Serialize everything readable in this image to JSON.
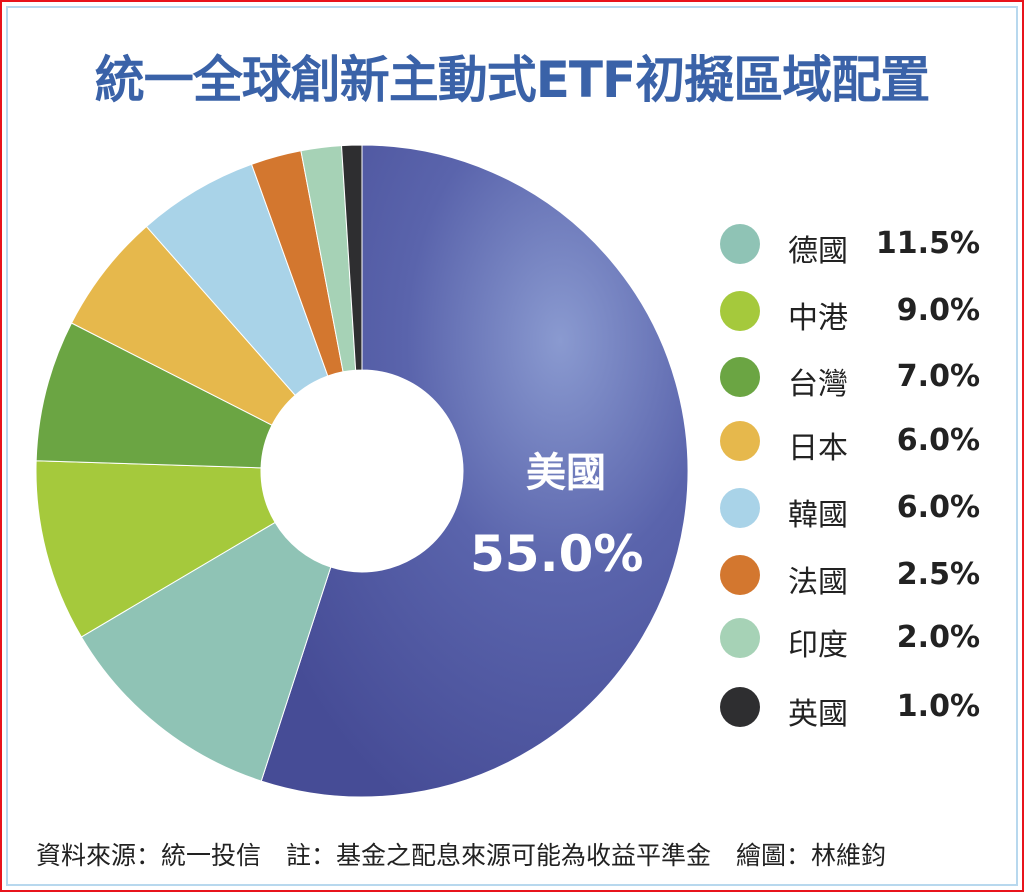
{
  "chart_data": {
    "type": "pie",
    "title": "統一全球創新主動式ETF初擬區域配置",
    "donut": true,
    "start": "top",
    "direction": "clockwise",
    "slices": [
      {
        "label": "美國",
        "value": 55.0,
        "display": "55.0%",
        "color": "#5059a2"
      },
      {
        "label": "德國",
        "value": 11.5,
        "display": "11.5%",
        "color": "#8fc3b5"
      },
      {
        "label": "中港",
        "value": 9.0,
        "display": "9.0%",
        "color": "#a5c93c"
      },
      {
        "label": "台灣",
        "value": 7.0,
        "display": "7.0%",
        "color": "#6ba543"
      },
      {
        "label": "日本",
        "value": 6.0,
        "display": "6.0%",
        "color": "#e6b84c"
      },
      {
        "label": "韓國",
        "value": 6.0,
        "display": "6.0%",
        "color": "#a9d3e8"
      },
      {
        "label": "法國",
        "value": 2.5,
        "display": "2.5%",
        "color": "#d3772f"
      },
      {
        "label": "印度",
        "value": 2.0,
        "display": "2.0%",
        "color": "#a6d2b6"
      },
      {
        "label": "英國",
        "value": 1.0,
        "display": "1.0%",
        "color": "#2e2e30"
      }
    ],
    "legend_placement": "right"
  },
  "footer": "資料來源：統一投信　註：基金之配息來源可能為收益平準金　繪圖：林維鈞"
}
